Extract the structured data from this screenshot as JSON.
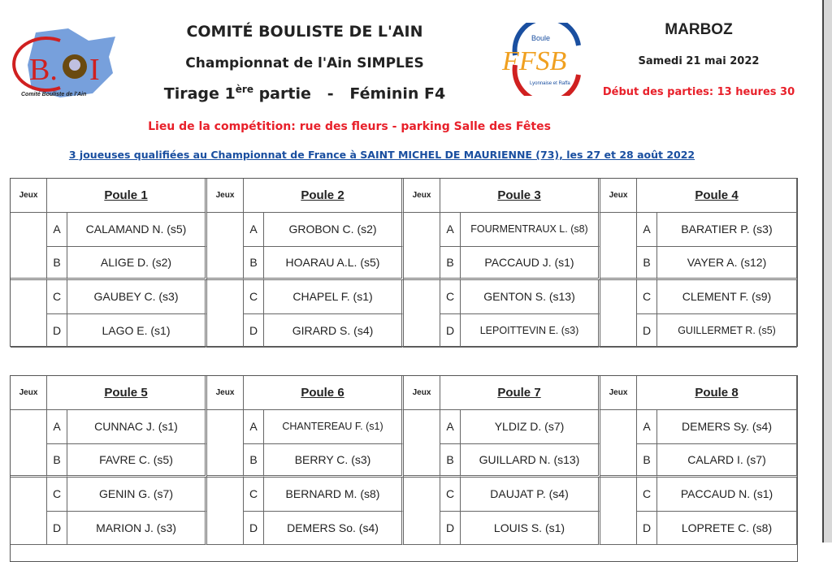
{
  "header": {
    "line1": "COMITÉ  BOULISTE  DE  L'AIN",
    "line2": "Championnat  de  l'Ain  SIMPLES",
    "line3_pre": "Tirage 1",
    "line3_sup": "ère",
    "line3_post": " partie   -   Féminin F4",
    "location": "Lieu de la compétition:  rue des fleurs - parking Salle des Fêtes",
    "qualified": "3 joueuses qualifiées au Championnat de France  à  SAINT MICHEL DE MAURIENNE (73), les 27 et 28 août 2022",
    "town": "MARBOZ",
    "date": "Samedi 21 mai 2022",
    "start": "Début des parties: 13 heures 30"
  },
  "logos": {
    "cba": {
      "text": "C.B.A.I",
      "caption": "Comité Bouliste de l'Ain"
    },
    "ffsb": {
      "text": "FFSB",
      "top": "Boule",
      "bottom": "Lyonnaise et Raffa"
    }
  },
  "colors": {
    "red": "#e8202a",
    "blue": "#1a4fa0",
    "orange": "#f0a020"
  },
  "jeux_label": "Jeux",
  "tables": [
    {
      "poules": [
        {
          "name": "Poule 1",
          "players": [
            [
              "A",
              "CALAMAND N. (s5)"
            ],
            [
              "B",
              "ALIGE D. (s2)"
            ],
            [
              "C",
              "GAUBEY C. (s3)"
            ],
            [
              "D",
              "LAGO E. (s1)"
            ]
          ]
        },
        {
          "name": "Poule 2",
          "players": [
            [
              "A",
              "GROBON C. (s2)"
            ],
            [
              "B",
              "HOARAU A.L. (s5)"
            ],
            [
              "C",
              "CHAPEL F. (s1)"
            ],
            [
              "D",
              "GIRARD S. (s4)"
            ]
          ]
        },
        {
          "name": "Poule 3",
          "players": [
            [
              "A",
              "FOURMENTRAUX L. (s8)"
            ],
            [
              "B",
              "PACCAUD J. (s1)"
            ],
            [
              "C",
              "GENTON S. (s13)"
            ],
            [
              "D",
              "LEPOITTEVIN E. (s3)"
            ]
          ]
        },
        {
          "name": "Poule 4",
          "players": [
            [
              "A",
              "BARATIER P. (s3)"
            ],
            [
              "B",
              "VAYER A. (s12)"
            ],
            [
              "C",
              "CLEMENT F. (s9)"
            ],
            [
              "D",
              "GUILLERMET R. (s5)"
            ]
          ]
        }
      ]
    },
    {
      "poules": [
        {
          "name": "Poule 5",
          "players": [
            [
              "A",
              "CUNNAC J. (s1)"
            ],
            [
              "B",
              "FAVRE C. (s5)"
            ],
            [
              "C",
              "GENIN G. (s7)"
            ],
            [
              "D",
              "MARION J. (s3)"
            ]
          ]
        },
        {
          "name": "Poule 6",
          "players": [
            [
              "A",
              "CHANTEREAU F. (s1)"
            ],
            [
              "B",
              "BERRY C. (s3)"
            ],
            [
              "C",
              "BERNARD M. (s8)"
            ],
            [
              "D",
              "DEMERS So. (s4)"
            ]
          ]
        },
        {
          "name": "Poule 7",
          "players": [
            [
              "A",
              "YLDIZ D. (s7)"
            ],
            [
              "B",
              "GUILLARD N. (s13)"
            ],
            [
              "C",
              "DAUJAT P. (s4)"
            ],
            [
              "D",
              "LOUIS S. (s1)"
            ]
          ]
        },
        {
          "name": "Poule 8",
          "players": [
            [
              "A",
              "DEMERS Sy. (s4)"
            ],
            [
              "B",
              "CALARD I. (s7)"
            ],
            [
              "C",
              "PACCAUD N. (s1)"
            ],
            [
              "D",
              "LOPRETE C. (s8)"
            ]
          ]
        }
      ]
    }
  ]
}
